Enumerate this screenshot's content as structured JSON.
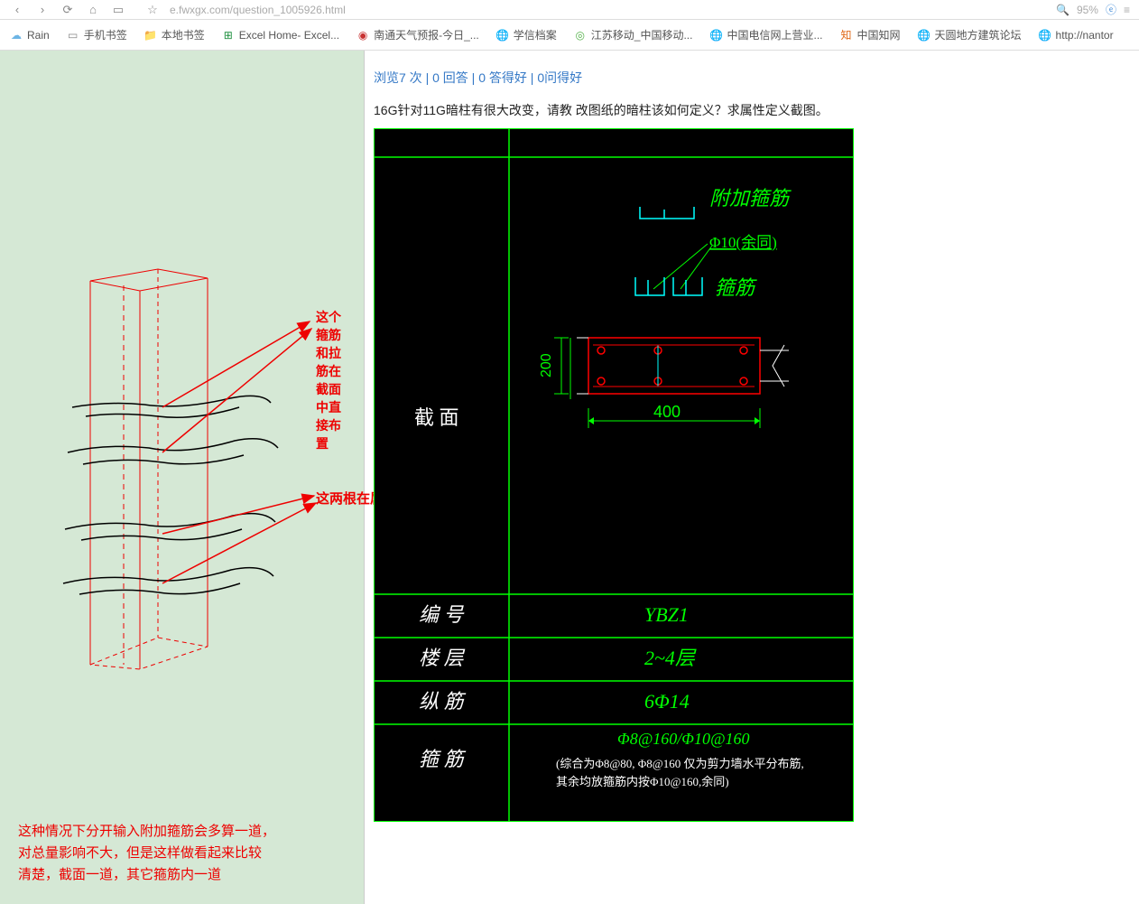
{
  "toolbar": {
    "addr": "e.fwxgx.com/question_1005926.html",
    "zoom": "95%"
  },
  "bookmarks": [
    {
      "icon": "rain",
      "label": "Rain",
      "color": "#6cb4e4"
    },
    {
      "icon": "page",
      "label": "手机书签",
      "color": "#888"
    },
    {
      "icon": "folder",
      "label": "本地书签",
      "color": "#e6b84a"
    },
    {
      "icon": "excel",
      "label": "Excel Home- Excel...",
      "color": "#1d8f3e"
    },
    {
      "icon": "red",
      "label": "南通天气预报-今日_...",
      "color": "#c83232"
    },
    {
      "icon": "globe",
      "label": "学信档案",
      "color": "#555"
    },
    {
      "icon": "jsyd",
      "label": "江苏移动_中国移动...",
      "color": "#54b24a"
    },
    {
      "icon": "globe",
      "label": "中国电信网上营业...",
      "color": "#555"
    },
    {
      "icon": "cnki",
      "label": "中国知网",
      "color": "#e06a1a"
    },
    {
      "icon": "globe",
      "label": "天圆地方建筑论坛",
      "color": "#555"
    },
    {
      "icon": "globe",
      "label": "http://nantor",
      "color": "#555"
    }
  ],
  "stats": {
    "views": "浏览7 次",
    "answers": "0 回答",
    "goodA": "0 答得好",
    "goodQ": "0问得好"
  },
  "question": "16G针对11G暗柱有很大改变，请教 改图纸的暗柱该如何定义？求属性定义截图。",
  "annot1": "这个箍筋和拉筋在截面中直接布置",
  "annot2": "这两根在属性的其它箍筋中增加手工输入",
  "bottom_text": "这种情况下分开输入附加箍筋会多算一道，\n对总量影响不大，但是这样做看起来比较\n清楚，截面一道，其它箍筋内一道",
  "cad": {
    "labels": {
      "fujia": "附加箍筋",
      "phi10": "Φ10(余同)",
      "gujin": "箍筋",
      "dim200": "200",
      "dim400": "400",
      "jiemian": "截 面",
      "bianhao": "编 号",
      "louceng": "楼 层",
      "zongjin": "纵 筋",
      "gujin2": "箍 筋",
      "ybz1": "YBZ1",
      "floor": "2~4层",
      "bar": "6Φ14",
      "hoop1": "Φ8@160/Φ10@160",
      "hoop2": "(综合为Φ8@80, Φ8@160 仅为剪力墙水平分布筋,",
      "hoop3": "其余均放箍筋内按Φ10@160,余同)"
    },
    "colors": {
      "green": "#00ff00",
      "cyan": "#00ffff",
      "red": "#ff0000",
      "white": "#ffffff"
    }
  }
}
